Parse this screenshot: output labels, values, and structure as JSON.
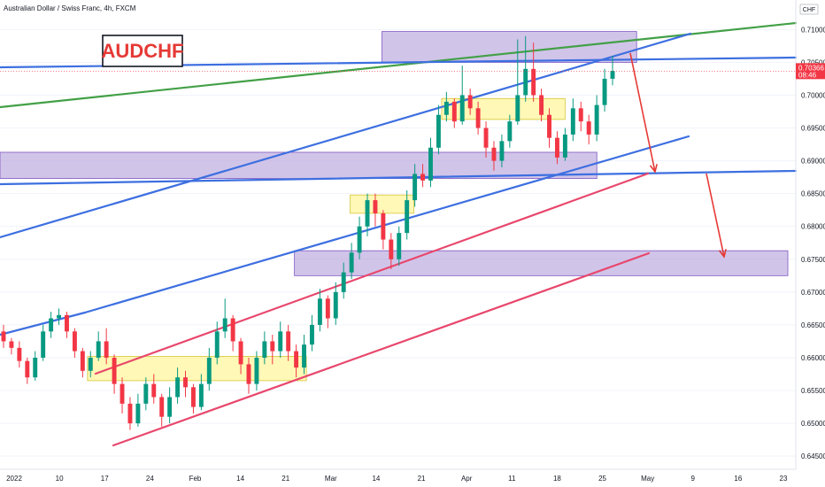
{
  "header": {
    "title": "Australian Dollar / Swiss Franc, 4h, FXCM"
  },
  "annotation": {
    "symbol_label": "AUDCHF"
  },
  "currency_badge": "CHF",
  "price_badge": {
    "price": "0.70366",
    "countdown": "08:46"
  },
  "colors": {
    "up": "#089981",
    "down": "#f23645",
    "zone_purple": "#b39ddb",
    "zone_yellow": "#fff59d",
    "line_blue": "#3d6fe0",
    "line_green": "#43a047",
    "line_pink": "#e8476c",
    "arrow_red": "#e53935",
    "price_badge": "#f23645"
  },
  "chart_data": {
    "type": "candlestick",
    "title": "Australian Dollar / Swiss Franc, 4h, FXCM",
    "ylim": [
      0.643,
      0.7145
    ],
    "x_ticks": [
      "2022",
      "10",
      "17",
      "24",
      "Feb",
      "14",
      "21",
      "Mar",
      "14",
      "21",
      "Apr",
      "11",
      "18",
      "25",
      "May",
      "9",
      "16",
      "23"
    ],
    "y_ticks": [
      "0.71000",
      "0.70500",
      "0.70000",
      "0.69500",
      "0.69000",
      "0.68500",
      "0.68000",
      "0.67500",
      "0.67000",
      "0.66500",
      "0.66000",
      "0.65500",
      "0.65000",
      "0.64500"
    ],
    "top_tick": "0.71500",
    "last_price": 0.70366,
    "price_path": [
      [
        0.664,
        0.6625,
        0.665,
        0.6615
      ],
      [
        0.6625,
        0.6615,
        0.663,
        0.6605
      ],
      [
        0.6615,
        0.6595,
        0.6625,
        0.6585
      ],
      [
        0.6595,
        0.657,
        0.66,
        0.656
      ],
      [
        0.657,
        0.66,
        0.661,
        0.6565
      ],
      [
        0.66,
        0.664,
        0.665,
        0.6595
      ],
      [
        0.664,
        0.666,
        0.667,
        0.663
      ],
      [
        0.666,
        0.6665,
        0.6675,
        0.665
      ],
      [
        0.6665,
        0.664,
        0.667,
        0.663
      ],
      [
        0.664,
        0.661,
        0.6645,
        0.66
      ],
      [
        0.661,
        0.658,
        0.6615,
        0.657
      ],
      [
        0.658,
        0.66,
        0.661,
        0.657
      ],
      [
        0.66,
        0.6625,
        0.664,
        0.6595
      ],
      [
        0.6625,
        0.66,
        0.6645,
        0.659
      ],
      [
        0.66,
        0.656,
        0.6605,
        0.6545
      ],
      [
        0.656,
        0.653,
        0.657,
        0.6515
      ],
      [
        0.653,
        0.65,
        0.654,
        0.649
      ],
      [
        0.65,
        0.653,
        0.6545,
        0.6495
      ],
      [
        0.653,
        0.656,
        0.657,
        0.652
      ],
      [
        0.656,
        0.654,
        0.6575,
        0.653
      ],
      [
        0.654,
        0.651,
        0.6545,
        0.6495
      ],
      [
        0.651,
        0.654,
        0.6555,
        0.65
      ],
      [
        0.654,
        0.657,
        0.6585,
        0.653
      ],
      [
        0.657,
        0.6555,
        0.658,
        0.654
      ],
      [
        0.6555,
        0.6525,
        0.656,
        0.6515
      ],
      [
        0.6525,
        0.656,
        0.6575,
        0.652
      ],
      [
        0.656,
        0.66,
        0.6615,
        0.655
      ],
      [
        0.66,
        0.664,
        0.6655,
        0.659
      ],
      [
        0.664,
        0.666,
        0.669,
        0.663
      ],
      [
        0.666,
        0.6625,
        0.6665,
        0.661
      ],
      [
        0.6625,
        0.659,
        0.663,
        0.6575
      ],
      [
        0.659,
        0.656,
        0.66,
        0.6545
      ],
      [
        0.656,
        0.66,
        0.661,
        0.655
      ],
      [
        0.66,
        0.6625,
        0.664,
        0.659
      ],
      [
        0.6625,
        0.661,
        0.6635,
        0.659
      ],
      [
        0.661,
        0.664,
        0.6655,
        0.66
      ],
      [
        0.664,
        0.661,
        0.665,
        0.6595
      ],
      [
        0.661,
        0.6585,
        0.662,
        0.657
      ],
      [
        0.6585,
        0.662,
        0.6635,
        0.6575
      ],
      [
        0.662,
        0.665,
        0.6665,
        0.661
      ],
      [
        0.665,
        0.669,
        0.6705,
        0.664
      ],
      [
        0.669,
        0.666,
        0.6695,
        0.6645
      ],
      [
        0.666,
        0.67,
        0.6715,
        0.665
      ],
      [
        0.67,
        0.673,
        0.6745,
        0.669
      ],
      [
        0.673,
        0.676,
        0.6775,
        0.672
      ],
      [
        0.676,
        0.68,
        0.6815,
        0.675
      ],
      [
        0.68,
        0.684,
        0.685,
        0.6785
      ],
      [
        0.684,
        0.682,
        0.685,
        0.68
      ],
      [
        0.682,
        0.678,
        0.6825,
        0.6765
      ],
      [
        0.678,
        0.675,
        0.679,
        0.6735
      ],
      [
        0.675,
        0.679,
        0.68,
        0.674
      ],
      [
        0.679,
        0.684,
        0.6855,
        0.678
      ],
      [
        0.684,
        0.688,
        0.6895,
        0.683
      ],
      [
        0.688,
        0.687,
        0.6895,
        0.686
      ],
      [
        0.687,
        0.692,
        0.6935,
        0.686
      ],
      [
        0.692,
        0.697,
        0.6985,
        0.691
      ],
      [
        0.697,
        0.699,
        0.7005,
        0.696
      ],
      [
        0.699,
        0.696,
        0.6995,
        0.695
      ],
      [
        0.696,
        0.7,
        0.7045,
        0.6955
      ],
      [
        0.7,
        0.698,
        0.701,
        0.697
      ],
      [
        0.698,
        0.695,
        0.699,
        0.694
      ],
      [
        0.695,
        0.692,
        0.696,
        0.6905
      ],
      [
        0.692,
        0.69,
        0.693,
        0.6885
      ],
      [
        0.69,
        0.693,
        0.694,
        0.689
      ],
      [
        0.693,
        0.696,
        0.697,
        0.692
      ],
      [
        0.696,
        0.7,
        0.7085,
        0.6955
      ],
      [
        0.7,
        0.704,
        0.709,
        0.699
      ],
      [
        0.704,
        0.7,
        0.708,
        0.699
      ],
      [
        0.7,
        0.697,
        0.701,
        0.696
      ],
      [
        0.697,
        0.6935,
        0.698,
        0.692
      ],
      [
        0.6935,
        0.6905,
        0.6945,
        0.6895
      ],
      [
        0.6905,
        0.694,
        0.695,
        0.69
      ],
      [
        0.694,
        0.698,
        0.6995,
        0.693
      ],
      [
        0.698,
        0.696,
        0.699,
        0.6945
      ],
      [
        0.696,
        0.694,
        0.697,
        0.6925
      ],
      [
        0.694,
        0.6985,
        0.7,
        0.693
      ],
      [
        0.6985,
        0.7025,
        0.704,
        0.6975
      ],
      [
        0.7025,
        0.7037,
        0.706,
        0.7015
      ]
    ],
    "zones_purple": [
      {
        "from": 0.705,
        "to": 0.7097,
        "x0": 0.48,
        "x1": 0.8
      },
      {
        "from": 0.6873,
        "to": 0.6913,
        "x0": 0.0,
        "x1": 0.75
      },
      {
        "from": 0.6725,
        "to": 0.6763,
        "x0": 0.37,
        "x1": 0.99
      }
    ],
    "zones_yellow": [
      {
        "from": 0.6963,
        "to": 0.6995,
        "x0": 0.555,
        "x1": 0.71
      },
      {
        "from": 0.682,
        "to": 0.6848,
        "x0": 0.44,
        "x1": 0.52
      },
      {
        "from": 0.6565,
        "to": 0.6602,
        "x0": 0.11,
        "x1": 0.385
      }
    ]
  }
}
